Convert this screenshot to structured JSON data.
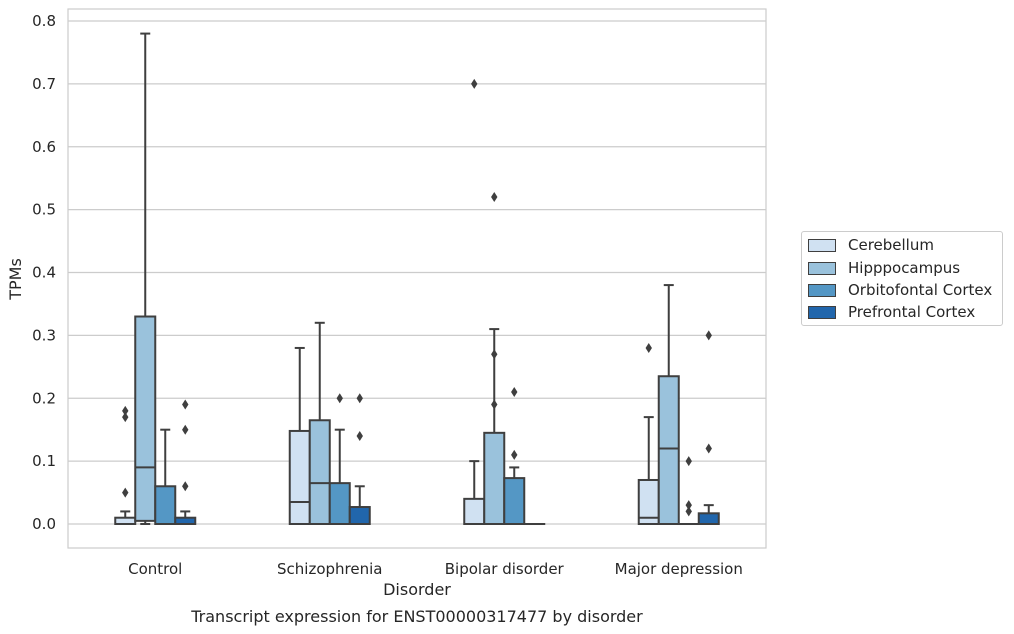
{
  "chart_data": {
    "type": "box",
    "title": "Transcript expression for ENST00000317477 by disorder",
    "xlabel": "Disorder",
    "ylabel": "TPMs",
    "ylim": [
      -0.038,
      0.82
    ],
    "yticks": [
      "0.0",
      "0.1",
      "0.2",
      "0.3",
      "0.4",
      "0.5",
      "0.6",
      "0.7",
      "0.8"
    ],
    "ytick_values": [
      0,
      0.1,
      0.2,
      0.3,
      0.4,
      0.5,
      0.6,
      0.7,
      0.8
    ],
    "grid": true,
    "legend_position": "right",
    "categories": [
      "Control",
      "Schizophrenia",
      "Bipolar disorder",
      "Major depression"
    ],
    "series": [
      {
        "name": "Cerebellum",
        "color": "#d0e1f2",
        "boxes": [
          {
            "whislo": 0,
            "q1": 0,
            "med": 0,
            "q3": 0.01,
            "whishi": 0.02,
            "fliers": [
              0.05,
              0.17,
              0.18
            ]
          },
          {
            "whislo": 0,
            "q1": 0,
            "med": 0.035,
            "q3": 0.148,
            "whishi": 0.28,
            "fliers": []
          },
          {
            "whislo": 0,
            "q1": 0,
            "med": 0,
            "q3": 0.04,
            "whishi": 0.1,
            "fliers": [
              0.7
            ]
          },
          {
            "whislo": 0,
            "q1": 0,
            "med": 0.01,
            "q3": 0.07,
            "whishi": 0.17,
            "fliers": [
              0.28
            ]
          }
        ]
      },
      {
        "name": "Hipppocampus",
        "color": "#9ac2dc",
        "boxes": [
          {
            "whislo": 0,
            "q1": 0.005,
            "med": 0.09,
            "q3": 0.33,
            "whishi": 0.78,
            "fliers": []
          },
          {
            "whislo": 0,
            "q1": 0,
            "med": 0.065,
            "q3": 0.165,
            "whishi": 0.32,
            "fliers": []
          },
          {
            "whislo": 0,
            "q1": 0,
            "med": 0,
            "q3": 0.145,
            "whishi": 0.31,
            "fliers": [
              0.19,
              0.27,
              0.52
            ]
          },
          {
            "whislo": 0,
            "q1": 0,
            "med": 0.12,
            "q3": 0.235,
            "whishi": 0.38,
            "fliers": []
          }
        ]
      },
      {
        "name": "Orbitofontal Cortex",
        "color": "#5497c5",
        "boxes": [
          {
            "whislo": 0,
            "q1": 0,
            "med": 0,
            "q3": 0.06,
            "whishi": 0.15,
            "fliers": []
          },
          {
            "whislo": 0,
            "q1": 0,
            "med": 0,
            "q3": 0.065,
            "whishi": 0.15,
            "fliers": [
              0.2
            ]
          },
          {
            "whislo": 0,
            "q1": 0,
            "med": 0,
            "q3": 0.073,
            "whishi": 0.09,
            "fliers": [
              0.11,
              0.21
            ]
          },
          {
            "whislo": 0,
            "q1": 0,
            "med": 0,
            "q3": 0,
            "whishi": 0,
            "fliers": [
              0.02,
              0.03,
              0.1
            ]
          }
        ]
      },
      {
        "name": "Prefrontal Cortex",
        "color": "#2166ac",
        "boxes": [
          {
            "whislo": 0,
            "q1": 0,
            "med": 0,
            "q3": 0.01,
            "whishi": 0.02,
            "fliers": [
              0.06,
              0.15,
              0.19
            ]
          },
          {
            "whislo": 0,
            "q1": 0,
            "med": 0,
            "q3": 0.027,
            "whishi": 0.06,
            "fliers": [
              0.14,
              0.2
            ]
          },
          {
            "whislo": 0,
            "q1": 0,
            "med": 0,
            "q3": 0,
            "whishi": 0,
            "fliers": []
          },
          {
            "whislo": 0,
            "q1": 0,
            "med": 0,
            "q3": 0.017,
            "whishi": 0.03,
            "fliers": [
              0.12,
              0.3
            ]
          }
        ]
      }
    ]
  }
}
